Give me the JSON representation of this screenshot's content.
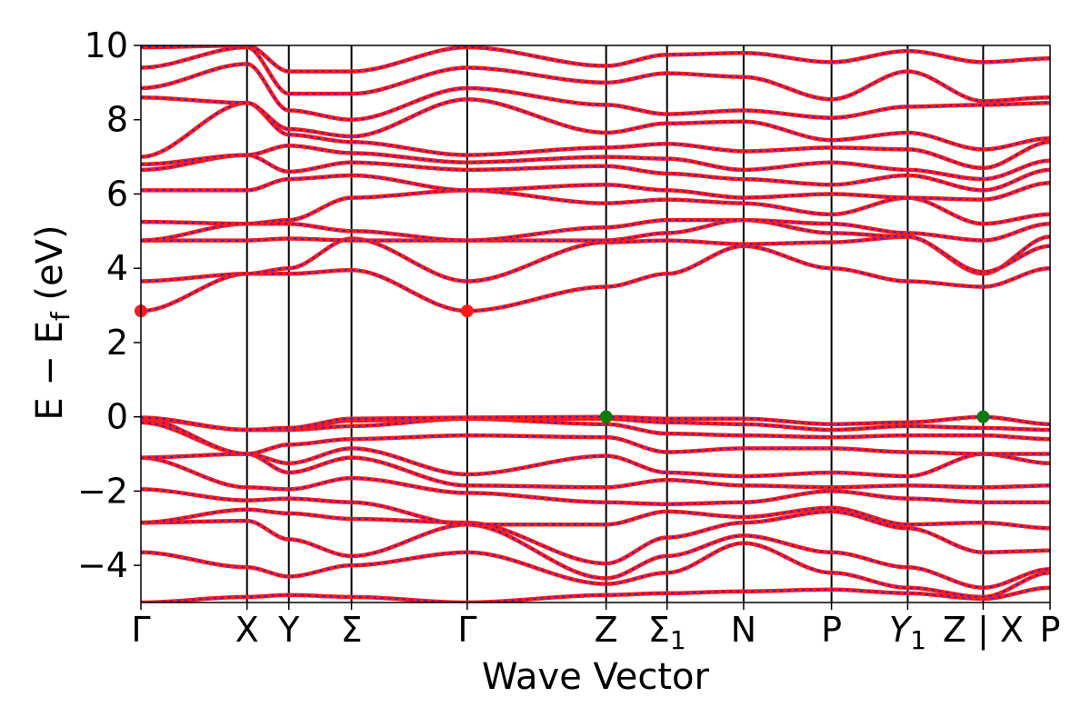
{
  "chart_data": {
    "type": "line",
    "xlabel": "Wave Vector",
    "ylabel": "E − E",
    "ylabel_sub": "f",
    "ylabel_unit": " (eV)",
    "ylim": [
      -5,
      10
    ],
    "yticks": [
      {
        "value": 10,
        "label": "10"
      },
      {
        "value": 8,
        "label": "8"
      },
      {
        "value": 6,
        "label": "6"
      },
      {
        "value": 4,
        "label": "4"
      },
      {
        "value": 2,
        "label": "2"
      },
      {
        "value": 0,
        "label": "0"
      },
      {
        "value": -2,
        "label": "−2"
      },
      {
        "value": -4,
        "label": "−4"
      }
    ],
    "xlim": [
      0,
      1
    ],
    "kpoints": [
      {
        "label": "Γ",
        "sub": "",
        "italic": false,
        "x": 0.0
      },
      {
        "label": "X",
        "sub": "",
        "italic": false,
        "x": 0.1167
      },
      {
        "label": "Y",
        "sub": "",
        "italic": false,
        "x": 0.1627
      },
      {
        "label": "Σ",
        "sub": "",
        "italic": false,
        "x": 0.2316
      },
      {
        "label": "Γ",
        "sub": "",
        "italic": false,
        "x": 0.3589
      },
      {
        "label": "Z",
        "sub": "",
        "italic": false,
        "x": 0.5117
      },
      {
        "label": "Σ",
        "sub": "1",
        "italic": false,
        "x": 0.5787
      },
      {
        "label": "N",
        "sub": "",
        "italic": false,
        "x": 0.6629
      },
      {
        "label": "P",
        "sub": "",
        "italic": false,
        "x": 0.7596
      },
      {
        "label": "Y",
        "sub": "1",
        "italic": true,
        "x": 0.8434
      },
      {
        "label": "Z | X",
        "sub": "",
        "italic": false,
        "x": 0.9264
      },
      {
        "label": "P",
        "sub": "",
        "italic": false,
        "x": 1.0
      }
    ],
    "highlight_points": [
      {
        "x": 0.0,
        "y": 2.85,
        "color": "#ff1a1a"
      },
      {
        "x": 0.3589,
        "y": 2.85,
        "color": "#ff1a1a"
      },
      {
        "x": 0.5117,
        "y": 0.0,
        "color": "#0d7a0d"
      },
      {
        "x": 0.9264,
        "y": 0.0,
        "color": "#0d7a0d"
      }
    ],
    "series_colors": {
      "main": "#ff1a1a",
      "overlay": "#2222dd"
    },
    "series": [
      {
        "values": [
          -5.0,
          -4.85,
          -4.8,
          -4.85,
          -5.0,
          -4.8,
          -4.75,
          -4.7,
          -4.65,
          -4.75,
          -4.9,
          -4.6
        ]
      },
      {
        "values": [
          -3.65,
          -4.05,
          -4.3,
          -4.0,
          -3.65,
          -4.5,
          -4.2,
          -3.4,
          -4.2,
          -4.6,
          -4.85,
          -4.2
        ]
      },
      {
        "values": [
          -2.85,
          -2.8,
          -3.3,
          -3.75,
          -2.9,
          -4.35,
          -3.75,
          -3.2,
          -3.65,
          -4.05,
          -4.6,
          -4.1
        ]
      },
      {
        "values": [
          -2.85,
          -2.5,
          -2.6,
          -2.75,
          -2.85,
          -3.95,
          -3.25,
          -2.85,
          -2.55,
          -3.0,
          -3.65,
          -3.6
        ]
      },
      {
        "values": [
          -1.95,
          -2.25,
          -2.2,
          -2.3,
          -2.9,
          -2.9,
          -2.55,
          -2.7,
          -2.45,
          -2.9,
          -2.85,
          -3.0
        ]
      },
      {
        "values": [
          -1.1,
          -1.9,
          -1.95,
          -1.65,
          -2.05,
          -2.3,
          -2.35,
          -2.3,
          -2.0,
          -2.2,
          -2.3,
          -2.3
        ]
      },
      {
        "values": [
          -1.1,
          -1.0,
          -1.5,
          -1.1,
          -1.85,
          -1.9,
          -1.7,
          -1.85,
          -1.9,
          -1.85,
          -1.9,
          -1.85
        ]
      },
      {
        "values": [
          -0.15,
          -1.0,
          -1.25,
          -0.85,
          -1.55,
          -1.05,
          -1.5,
          -1.6,
          -1.5,
          -1.6,
          -1.0,
          -1.25
        ]
      },
      {
        "values": [
          -0.05,
          -1.0,
          -0.75,
          -0.6,
          -0.5,
          -0.55,
          -0.95,
          -0.85,
          -0.85,
          -0.95,
          -1.0,
          -1.0
        ]
      },
      {
        "values": [
          -0.05,
          -0.35,
          -0.35,
          -0.25,
          -0.05,
          -0.2,
          -0.45,
          -0.5,
          -0.55,
          -0.5,
          -0.5,
          -0.6
        ]
      },
      {
        "values": [
          -0.05,
          -0.35,
          -0.35,
          -0.1,
          -0.05,
          -0.05,
          -0.15,
          -0.2,
          -0.35,
          -0.25,
          -0.3,
          -0.35
        ]
      },
      {
        "values": [
          -0.02,
          -0.35,
          -0.3,
          -0.05,
          -0.02,
          0.0,
          -0.05,
          -0.05,
          -0.2,
          -0.15,
          0.0,
          -0.2
        ]
      },
      {
        "values": [
          2.85,
          3.85,
          3.85,
          3.95,
          2.85,
          3.5,
          3.85,
          4.6,
          4.0,
          3.65,
          3.5,
          4.0
        ]
      },
      {
        "values": [
          3.65,
          3.85,
          4.0,
          4.8,
          3.65,
          4.7,
          4.75,
          4.65,
          4.7,
          4.85,
          3.85,
          4.85
        ]
      },
      {
        "values": [
          4.75,
          4.75,
          4.8,
          4.75,
          4.75,
          4.75,
          4.95,
          5.3,
          4.95,
          4.85,
          3.9,
          4.6
        ]
      },
      {
        "values": [
          4.75,
          5.2,
          5.2,
          5.0,
          4.75,
          5.1,
          5.3,
          5.3,
          5.2,
          4.95,
          4.75,
          5.2
        ]
      },
      {
        "values": [
          5.25,
          5.2,
          5.3,
          5.9,
          6.1,
          5.75,
          5.85,
          5.75,
          5.45,
          5.9,
          5.2,
          5.45
        ]
      },
      {
        "values": [
          6.1,
          6.1,
          6.4,
          6.5,
          6.1,
          6.25,
          6.1,
          5.9,
          6.0,
          5.9,
          5.85,
          6.3
        ]
      },
      {
        "values": [
          6.65,
          7.05,
          6.6,
          6.85,
          6.65,
          6.75,
          6.55,
          6.4,
          6.25,
          6.5,
          6.1,
          6.65
        ]
      },
      {
        "values": [
          6.8,
          7.05,
          7.3,
          7.1,
          6.85,
          7.0,
          6.95,
          6.65,
          6.85,
          6.65,
          6.4,
          6.9
        ]
      },
      {
        "values": [
          7.0,
          8.45,
          7.6,
          7.4,
          7.05,
          7.25,
          7.35,
          7.15,
          7.25,
          7.2,
          6.7,
          7.4
        ]
      },
      {
        "values": [
          8.6,
          8.45,
          7.75,
          7.55,
          8.55,
          7.65,
          7.9,
          7.95,
          7.45,
          7.65,
          7.2,
          7.5
        ]
      },
      {
        "values": [
          8.85,
          9.5,
          8.25,
          8.0,
          8.85,
          8.4,
          8.15,
          8.25,
          8.05,
          8.35,
          8.4,
          8.45
        ]
      },
      {
        "values": [
          9.4,
          9.95,
          8.7,
          8.7,
          9.4,
          9.0,
          9.25,
          9.15,
          8.55,
          9.3,
          8.5,
          8.6
        ]
      },
      {
        "values": [
          9.95,
          10.0,
          9.3,
          9.3,
          9.95,
          9.45,
          9.75,
          9.8,
          9.55,
          9.85,
          9.55,
          9.65
        ]
      }
    ]
  }
}
